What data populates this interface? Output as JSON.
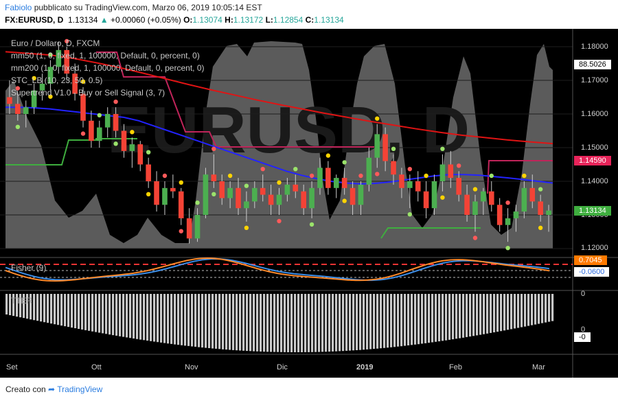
{
  "header": {
    "author": "Fabiolo",
    "published": "pubblicato su TradingView.com, Marzo 06, 2019 10:05:14 EST",
    "symbol": "FX:EURUSD, D",
    "last": "1.13134",
    "change": "+0.00060 (+0.05%)",
    "o_label": "O:",
    "o_value": "1.13074",
    "h_label": "H:",
    "h_value": "1.13172",
    "l_label": "L:",
    "l_value": "1.12854",
    "c_label": "C:",
    "c_value": "1.13134"
  },
  "legend": {
    "title": "Euro / Dollaro, D, FXCM",
    "ma50": "mm50 (1, 0, fixed, 1, 100000, Default, 0, percent, 0)",
    "ma200": "mm200 (1, 0, fixed, 1, 100000, Default, 0, percent, 0)",
    "stc": "STC_LB (10, 23, 50, 0.5)",
    "supertrend": "Supertrend V1.0 - Buy or Sell Signal (3, 7)",
    "fisher": "Fisher (9)",
    "ttm": "TTER"
  },
  "watermark": "EURUSD, D",
  "price_axis": [
    "1.18000",
    "1.17000",
    "1.16000",
    "1.15000",
    "1.14000",
    "1.13000",
    "1.12000"
  ],
  "price_labels": {
    "stc_value": "88.5026",
    "supertrend_value": "1.14590",
    "last_price": "1.13134",
    "fisher_1": "0.7045",
    "fisher_2": "-0.0600",
    "osc_0": "0",
    "osc_0_low": "0",
    "osc_neg": "-0"
  },
  "time_axis": [
    "Set",
    "Ott",
    "Nov",
    "Dic",
    "2019",
    "Feb",
    "Mar"
  ],
  "footer": {
    "created_with": "Creato con",
    "brand": "TradingView"
  },
  "colors": {
    "background": "#000000",
    "up_candle": "#4caf50",
    "down_candle": "#f44336",
    "ma50": "#2323ff",
    "ma200": "#e01414",
    "stc_area": "#6b6b6b",
    "supertrend_up": "#3fae3f",
    "supertrend_down": "#c0245a",
    "fisher_a": "#ff8a2a",
    "fisher_b": "#3c8ee8",
    "brand": "#2b7de0"
  },
  "chart_data": {
    "type": "candlestick",
    "symbol": "FX:EURUSD",
    "timeframe": "D",
    "ylim": [
      1.12,
      1.18
    ],
    "x_labels": [
      "Set",
      "Ott",
      "Nov",
      "Dic",
      "2019",
      "Feb",
      "Mar"
    ],
    "ohlc": [
      [
        1.165,
        1.17,
        1.16,
        1.163
      ],
      [
        1.163,
        1.166,
        1.158,
        1.16
      ],
      [
        1.16,
        1.164,
        1.156,
        1.162
      ],
      [
        1.162,
        1.169,
        1.16,
        1.167
      ],
      [
        1.167,
        1.172,
        1.164,
        1.169
      ],
      [
        1.169,
        1.176,
        1.167,
        1.174
      ],
      [
        1.174,
        1.1815,
        1.172,
        1.179
      ],
      [
        1.179,
        1.18,
        1.17,
        1.172
      ],
      [
        1.172,
        1.175,
        1.164,
        1.166
      ],
      [
        1.166,
        1.168,
        1.156,
        1.158
      ],
      [
        1.158,
        1.161,
        1.15,
        1.152
      ],
      [
        1.152,
        1.158,
        1.15,
        1.156
      ],
      [
        1.156,
        1.162,
        1.153,
        1.16
      ],
      [
        1.16,
        1.162,
        1.153,
        1.155
      ],
      [
        1.155,
        1.157,
        1.147,
        1.149
      ],
      [
        1.149,
        1.153,
        1.144,
        1.151
      ],
      [
        1.151,
        1.152,
        1.143,
        1.145
      ],
      [
        1.145,
        1.147,
        1.138,
        1.14
      ],
      [
        1.14,
        1.143,
        1.131,
        1.133
      ],
      [
        1.133,
        1.14,
        1.13,
        1.138
      ],
      [
        1.138,
        1.142,
        1.135,
        1.137
      ],
      [
        1.137,
        1.138,
        1.127,
        1.129
      ],
      [
        1.129,
        1.132,
        1.1215,
        1.123
      ],
      [
        1.123,
        1.132,
        1.122,
        1.13
      ],
      [
        1.13,
        1.144,
        1.129,
        1.142
      ],
      [
        1.142,
        1.148,
        1.138,
        1.14
      ],
      [
        1.14,
        1.142,
        1.133,
        1.135
      ],
      [
        1.135,
        1.14,
        1.132,
        1.138
      ],
      [
        1.138,
        1.141,
        1.13,
        1.132
      ],
      [
        1.132,
        1.137,
        1.128,
        1.134
      ],
      [
        1.134,
        1.14,
        1.132,
        1.138
      ],
      [
        1.138,
        1.142,
        1.134,
        1.136
      ],
      [
        1.136,
        1.139,
        1.13,
        1.133
      ],
      [
        1.133,
        1.138,
        1.13,
        1.136
      ],
      [
        1.136,
        1.141,
        1.134,
        1.139
      ],
      [
        1.139,
        1.142,
        1.135,
        1.137
      ],
      [
        1.137,
        1.139,
        1.13,
        1.132
      ],
      [
        1.132,
        1.14,
        1.129,
        1.138
      ],
      [
        1.138,
        1.147,
        1.136,
        1.144
      ],
      [
        1.144,
        1.146,
        1.136,
        1.138
      ],
      [
        1.138,
        1.142,
        1.135,
        1.141
      ],
      [
        1.141,
        1.144,
        1.136,
        1.138
      ],
      [
        1.138,
        1.14,
        1.13,
        1.133
      ],
      [
        1.133,
        1.14,
        1.13,
        1.139
      ],
      [
        1.139,
        1.15,
        1.137,
        1.147
      ],
      [
        1.147,
        1.157,
        1.144,
        1.154
      ],
      [
        1.154,
        1.156,
        1.143,
        1.146
      ],
      [
        1.146,
        1.148,
        1.139,
        1.142
      ],
      [
        1.142,
        1.144,
        1.135,
        1.138
      ],
      [
        1.138,
        1.142,
        1.132,
        1.14
      ],
      [
        1.14,
        1.143,
        1.134,
        1.137
      ],
      [
        1.137,
        1.14,
        1.129,
        1.132
      ],
      [
        1.132,
        1.142,
        1.13,
        1.14
      ],
      [
        1.14,
        1.148,
        1.137,
        1.145
      ],
      [
        1.145,
        1.149,
        1.138,
        1.141
      ],
      [
        1.141,
        1.143,
        1.134,
        1.136
      ],
      [
        1.136,
        1.139,
        1.128,
        1.13
      ],
      [
        1.13,
        1.136,
        1.125,
        1.134
      ],
      [
        1.134,
        1.138,
        1.13,
        1.137
      ],
      [
        1.137,
        1.14,
        1.131,
        1.133
      ],
      [
        1.133,
        1.135,
        1.125,
        1.127
      ],
      [
        1.127,
        1.132,
        1.122,
        1.129
      ],
      [
        1.129,
        1.133,
        1.125,
        1.131
      ],
      [
        1.131,
        1.14,
        1.129,
        1.138
      ],
      [
        1.138,
        1.142,
        1.132,
        1.134
      ],
      [
        1.134,
        1.136,
        1.128,
        1.13
      ],
      [
        1.13,
        1.133,
        1.125,
        1.1313
      ]
    ],
    "ma50": [
      1.162,
      1.162,
      1.1618,
      1.1615,
      1.161,
      1.1605,
      1.16,
      1.1595,
      1.159,
      1.158,
      1.1565,
      1.155,
      1.1535,
      1.152,
      1.1505,
      1.149,
      1.1475,
      1.146,
      1.1445,
      1.143,
      1.1418,
      1.1408,
      1.14,
      1.1395,
      1.1392,
      1.1394,
      1.1398,
      1.1404,
      1.141,
      1.1416,
      1.142,
      1.142,
      1.1418,
      1.1414,
      1.141,
      1.1405,
      1.14,
      1.1395
    ],
    "ma200": [
      1.1785,
      1.178,
      1.1775,
      1.1765,
      1.1752,
      1.1738,
      1.1722,
      1.1705,
      1.1688,
      1.1672,
      1.1657,
      1.1642,
      1.1628,
      1.1615,
      1.1602,
      1.159,
      1.1578,
      1.1567,
      1.1556,
      1.1546,
      1.1537,
      1.153,
      1.1523,
      1.1517,
      1.1512
    ]
  }
}
